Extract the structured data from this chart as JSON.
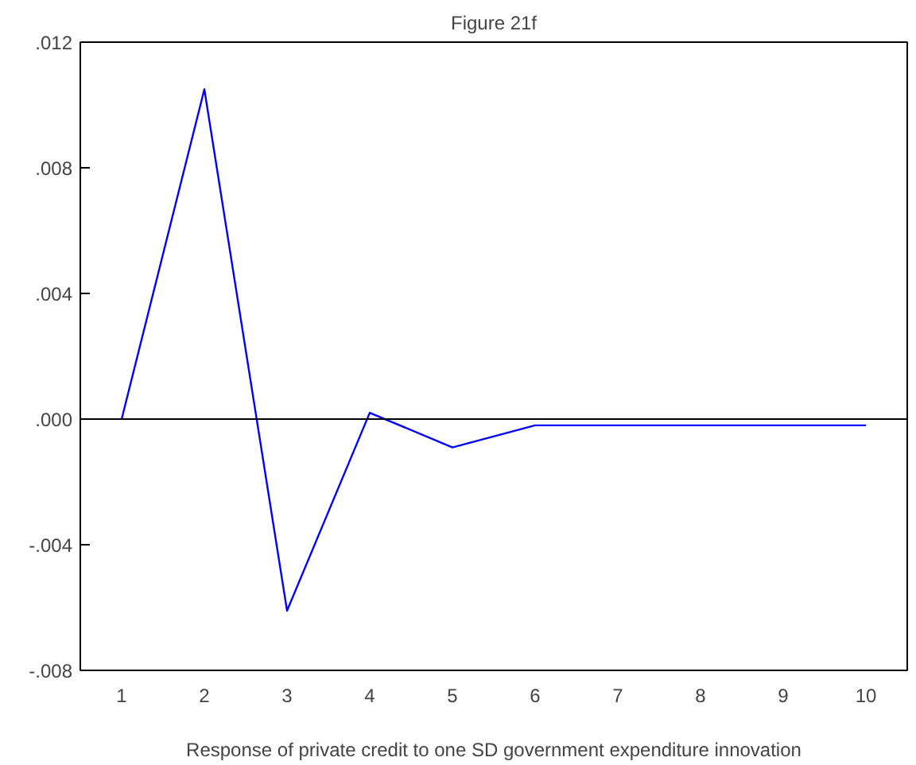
{
  "chart_data": {
    "type": "line",
    "title": "Figure 21f",
    "xlabel": "Response of private credit to one SD government expenditure innovation",
    "categories": [
      "1",
      "2",
      "3",
      "4",
      "5",
      "6",
      "7",
      "8",
      "9",
      "10"
    ],
    "series": [
      {
        "color": "#0000ff",
        "values": [
          0.0,
          0.0105,
          -0.0061,
          0.0002,
          -0.0009,
          -0.0002,
          -0.0002,
          -0.0002,
          -0.0002,
          -0.0002
        ]
      }
    ],
    "ylim": [
      -0.008,
      0.012
    ],
    "yticks": [
      {
        "value": -0.008,
        "label": "-.008"
      },
      {
        "value": -0.004,
        "label": "-.004"
      },
      {
        "value": 0.0,
        "label": ".000"
      },
      {
        "value": 0.004,
        "label": ".004"
      },
      {
        "value": 0.008,
        "label": ".008"
      },
      {
        "value": 0.012,
        "label": ".012"
      }
    ],
    "ref_lines": [
      {
        "axis": "y",
        "value": 0.0,
        "color": "#000000"
      }
    ]
  }
}
